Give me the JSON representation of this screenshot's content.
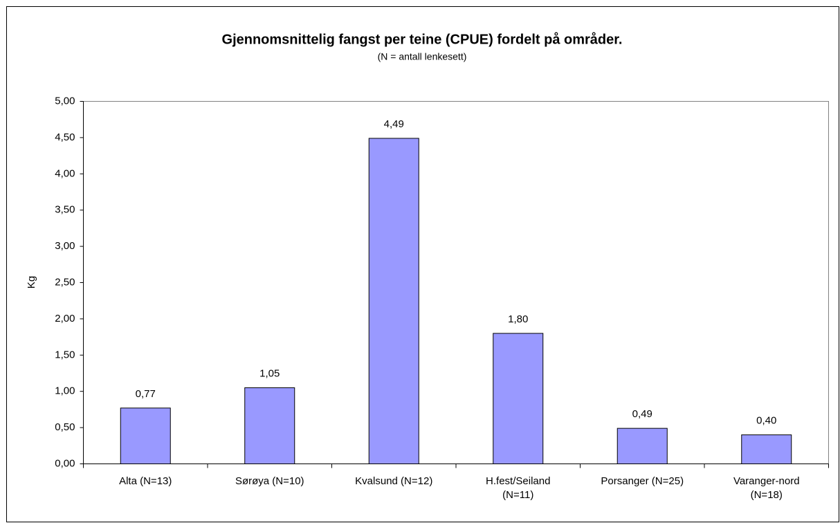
{
  "chart_data": {
    "type": "bar",
    "title": "Gjennomsnittelig fangst per teine (CPUE) fordelt på områder.",
    "subtitle": "(N = antall lenkesett)",
    "y_label": "Kg",
    "categories": [
      "Alta (N=13)",
      "Sørøya (N=10)",
      "Kvalsund (N=12)",
      "H.fest/Seiland\n(N=11)",
      "Porsanger (N=25)",
      "Varanger-nord\n(N=18)"
    ],
    "values": [
      0.77,
      1.05,
      4.49,
      1.8,
      0.49,
      0.4
    ],
    "value_labels": [
      "0,77",
      "1,05",
      "4,49",
      "1,80",
      "0,49",
      "0,40"
    ],
    "color": "#9999ff",
    "ylim": [
      0,
      5
    ],
    "yticks": [
      {
        "value": 0,
        "label": "0,00"
      },
      {
        "value": 0.5,
        "label": "0,50"
      },
      {
        "value": 1,
        "label": "1,00"
      },
      {
        "value": 1.5,
        "label": "1,50"
      },
      {
        "value": 2,
        "label": "2,00"
      },
      {
        "value": 2.5,
        "label": "2,50"
      },
      {
        "value": 3,
        "label": "3,00"
      },
      {
        "value": 3.5,
        "label": "3,50"
      },
      {
        "value": 4,
        "label": "4,00"
      },
      {
        "value": 4.5,
        "label": "4,50"
      },
      {
        "value": 5,
        "label": "5,00"
      }
    ],
    "grid": false
  }
}
